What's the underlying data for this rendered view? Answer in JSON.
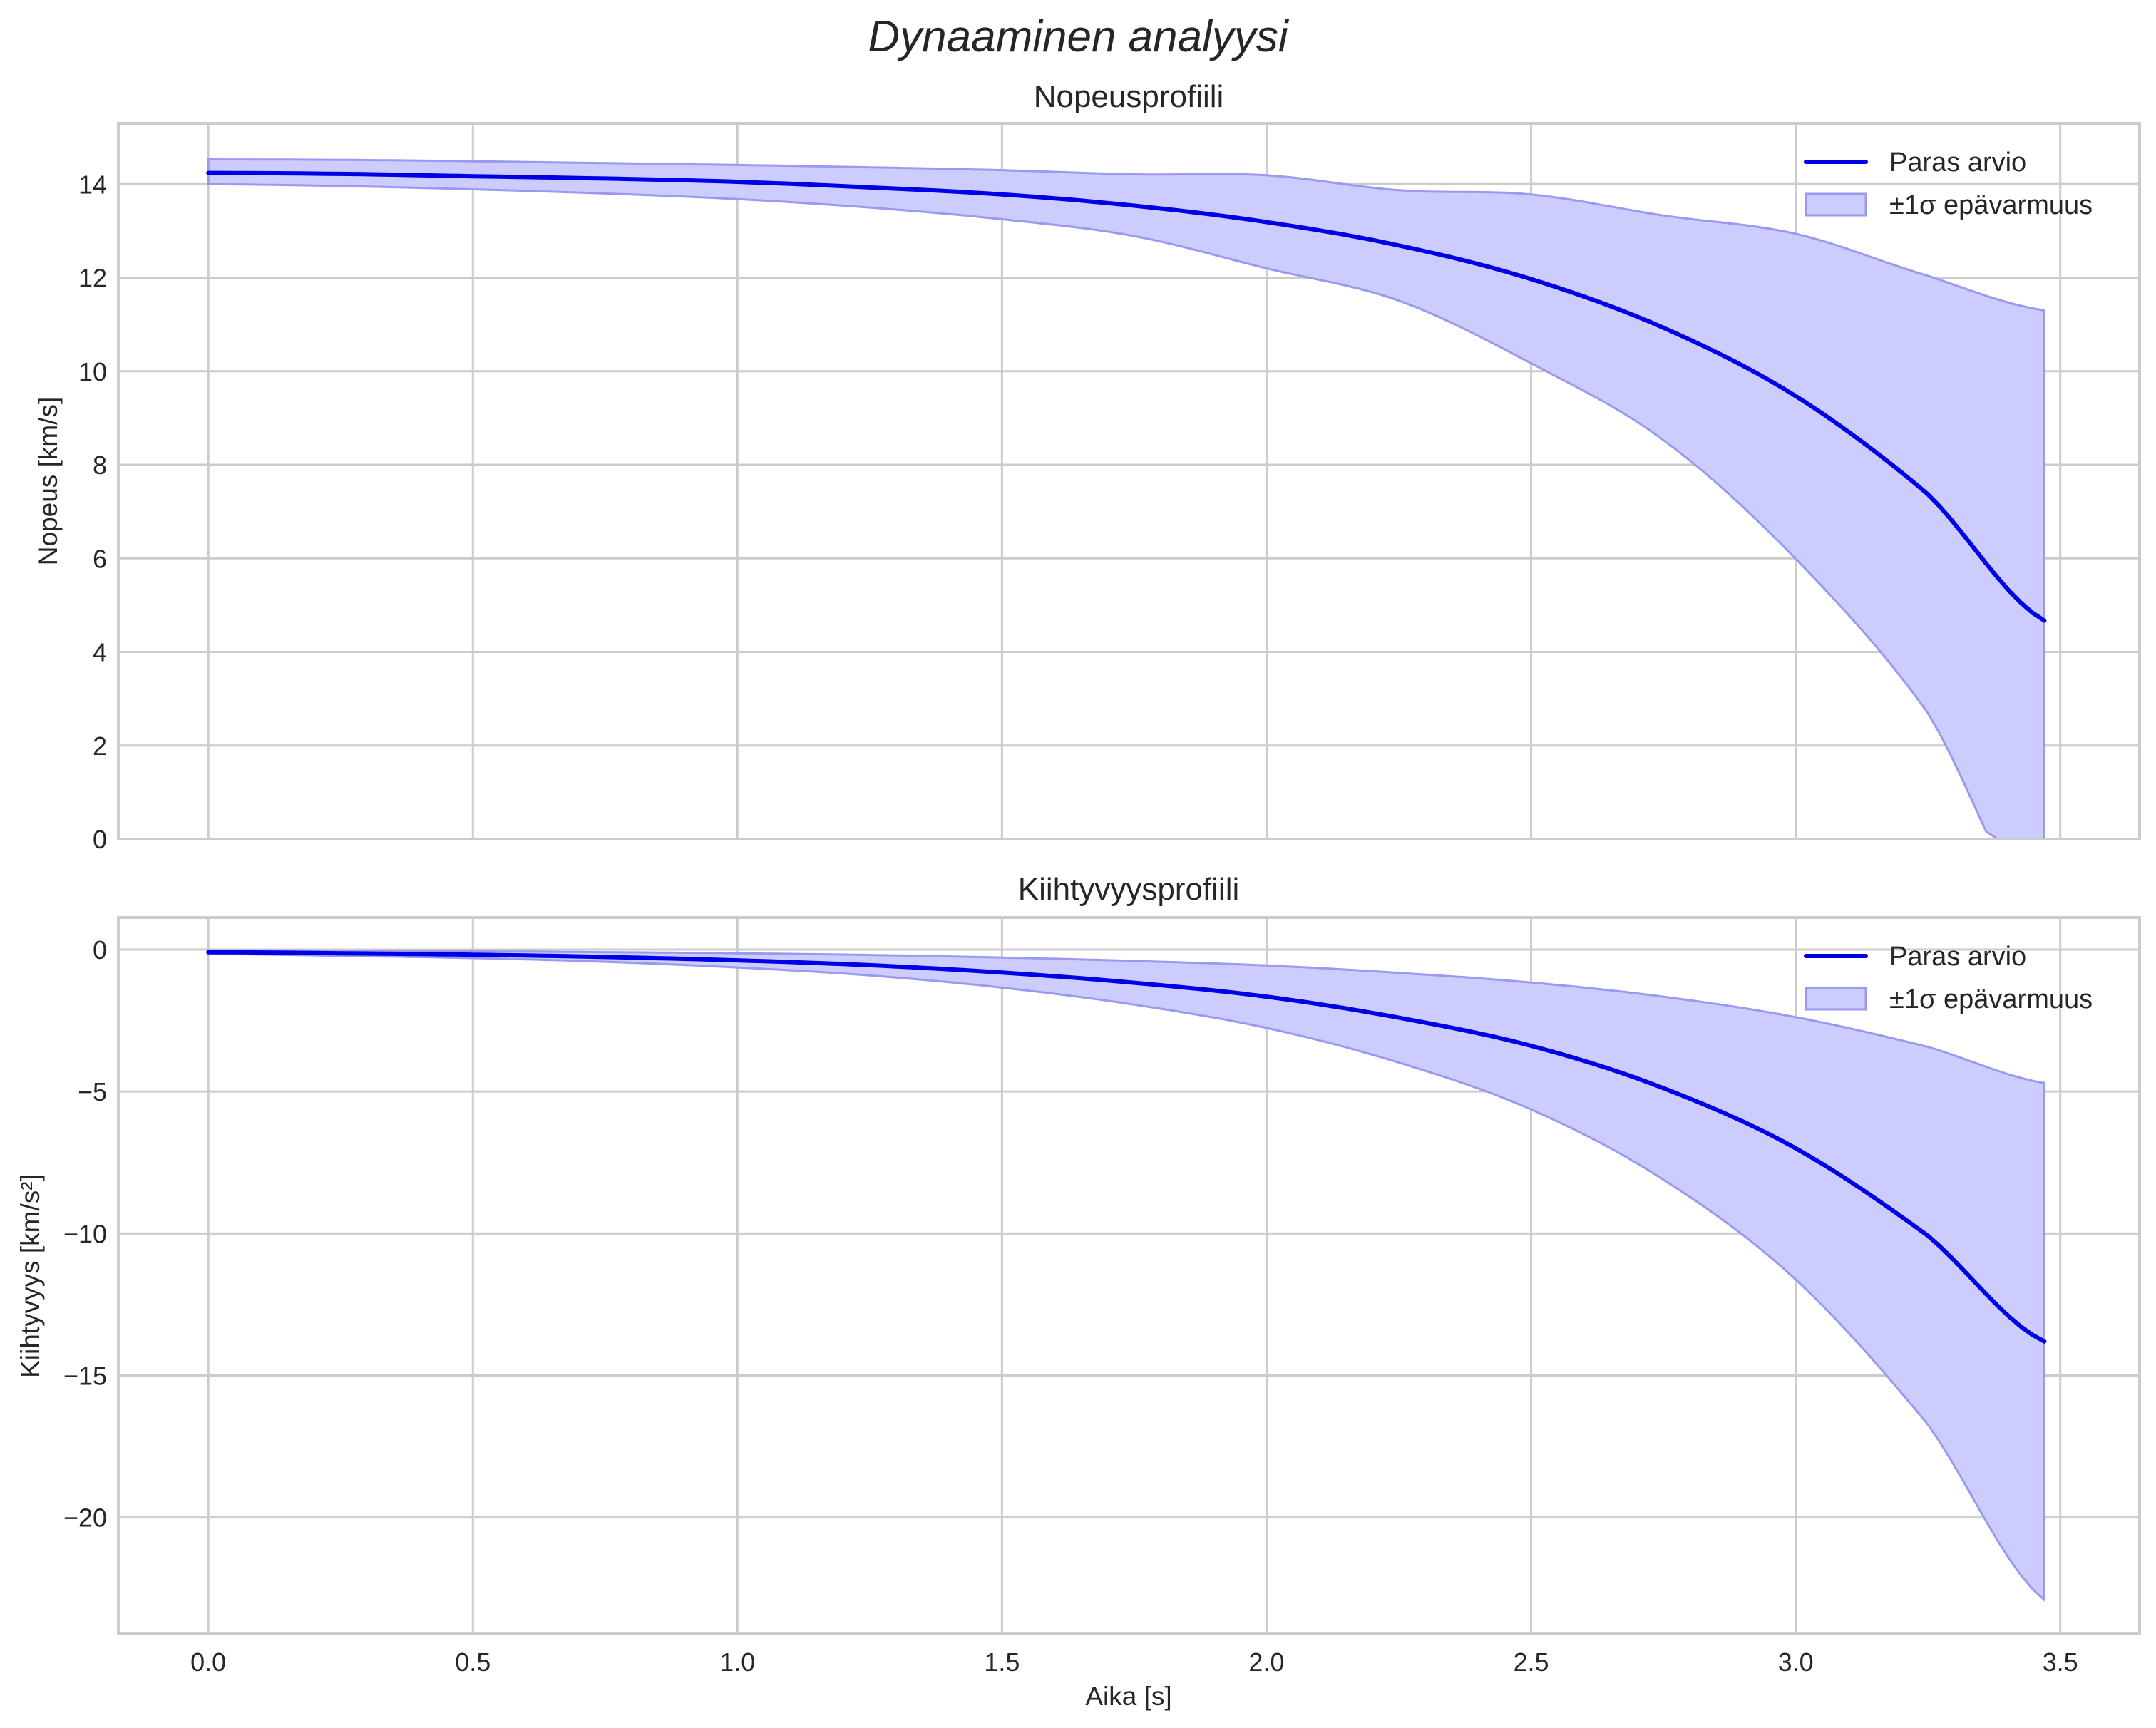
{
  "figure": {
    "title": "Dynaaminen analyysi"
  },
  "colors": {
    "line": "#0000e6",
    "band_fill": "#ccccff",
    "band_edge": "#9999f0",
    "grid": "#cccccc",
    "text": "#262626"
  },
  "chart_data": [
    {
      "type": "line",
      "title": "Nopeusprofiili",
      "xlabel": "",
      "ylabel": "Nopeus [km/s]",
      "xlim": [
        -0.17,
        3.65
      ],
      "ylim": [
        0,
        15.3
      ],
      "xticks": [
        0.0,
        0.5,
        1.0,
        1.5,
        2.0,
        2.5,
        3.0,
        3.5
      ],
      "xtick_labels": [
        "0.0",
        "0.5",
        "1.0",
        "1.5",
        "2.0",
        "2.5",
        "3.0",
        "3.5"
      ],
      "xtick_labels_visible": false,
      "yticks": [
        0,
        2,
        4,
        6,
        8,
        10,
        12,
        14
      ],
      "ytick_labels": [
        "0",
        "2",
        "4",
        "6",
        "8",
        "10",
        "12",
        "14"
      ],
      "grid": true,
      "legend_position": "upper right",
      "legend": [
        "Paras arvio",
        "±1σ epävarmuus"
      ],
      "x": [
        0.0,
        0.25,
        0.5,
        0.75,
        1.0,
        1.25,
        1.5,
        1.75,
        2.0,
        2.25,
        2.5,
        2.75,
        3.0,
        3.25,
        3.47
      ],
      "series": [
        {
          "name": "Paras arvio",
          "kind": "line",
          "values": [
            14.24,
            14.22,
            14.17,
            14.12,
            14.05,
            13.93,
            13.78,
            13.54,
            13.19,
            12.69,
            11.97,
            10.93,
            9.47,
            7.37,
            4.67
          ]
        },
        {
          "name": "±1σ epävarmuus",
          "kind": "band",
          "lower": [
            14.0,
            13.96,
            13.89,
            13.8,
            13.68,
            13.5,
            13.25,
            12.89,
            12.2,
            11.51,
            10.17,
            8.53,
            5.99,
            2.69,
            -1.96
          ],
          "upper": [
            14.53,
            14.52,
            14.49,
            14.45,
            14.41,
            14.36,
            14.3,
            14.21,
            14.19,
            13.87,
            13.78,
            13.33,
            12.94,
            12.04,
            11.3
          ]
        }
      ]
    },
    {
      "type": "line",
      "title": "Kiihtyvyysprofiili",
      "xlabel": "Aika [s]",
      "ylabel": "Kiihtyvyys [km/s²]",
      "xlim": [
        -0.17,
        3.65
      ],
      "ylim": [
        -24.1,
        1.13
      ],
      "xticks": [
        0.0,
        0.5,
        1.0,
        1.5,
        2.0,
        2.5,
        3.0,
        3.5
      ],
      "xtick_labels": [
        "0.0",
        "0.5",
        "1.0",
        "1.5",
        "2.0",
        "2.5",
        "3.0",
        "3.5"
      ],
      "yticks": [
        0,
        -5,
        -10,
        -15,
        -20
      ],
      "ytick_labels": [
        "0",
        "−5",
        "−10",
        "−15",
        "−20"
      ],
      "grid": true,
      "legend_position": "upper right",
      "legend": [
        "Paras arvio",
        "±1σ epävarmuus"
      ],
      "x": [
        0.0,
        0.25,
        0.5,
        0.75,
        1.0,
        1.25,
        1.5,
        1.75,
        2.0,
        2.25,
        2.5,
        2.75,
        3.0,
        3.25,
        3.47
      ],
      "series": [
        {
          "name": "Paras arvio",
          "kind": "line",
          "values": [
            -0.09,
            -0.13,
            -0.18,
            -0.26,
            -0.38,
            -0.55,
            -0.81,
            -1.17,
            -1.66,
            -2.4,
            -3.39,
            -4.88,
            -7.0,
            -10.08,
            -13.8
          ]
        },
        {
          "name": "±1σ epävarmuus",
          "kind": "band",
          "lower": [
            -0.15,
            -0.22,
            -0.3,
            -0.43,
            -0.63,
            -0.91,
            -1.34,
            -1.94,
            -2.76,
            -3.98,
            -5.63,
            -8.1,
            -11.62,
            -16.73,
            -22.9
          ],
          "upper": [
            -0.03,
            -0.04,
            -0.06,
            -0.09,
            -0.13,
            -0.19,
            -0.28,
            -0.4,
            -0.56,
            -0.82,
            -1.16,
            -1.66,
            -2.38,
            -3.43,
            -4.7
          ]
        }
      ]
    }
  ]
}
